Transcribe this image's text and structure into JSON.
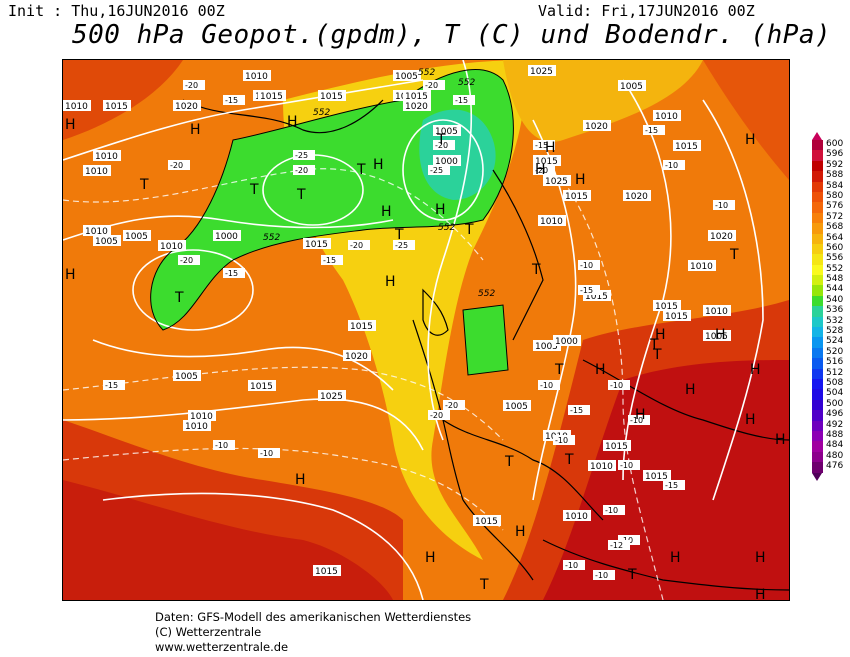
{
  "header": {
    "init": "Init : Thu,16JUN2016 00Z",
    "valid": "Valid: Fri,17JUN2016 00Z",
    "title": "500 hPa Geopot.(gpdm), T (C) und Bodendr. (hPa)"
  },
  "legend": {
    "labels": [
      "600",
      "596",
      "592",
      "588",
      "584",
      "580",
      "576",
      "572",
      "568",
      "564",
      "560",
      "556",
      "552",
      "548",
      "544",
      "540",
      "536",
      "532",
      "528",
      "524",
      "520",
      "516",
      "512",
      "508",
      "504",
      "500",
      "496",
      "492",
      "488",
      "484",
      "480",
      "476"
    ],
    "colors": [
      "#b0003a",
      "#d0103a",
      "#c00000",
      "#d21a06",
      "#e33a06",
      "#ee5208",
      "#f4680a",
      "#f7800a",
      "#f79a0c",
      "#f6b40e",
      "#f6ce10",
      "#f5e614",
      "#fafa1e",
      "#d2f010",
      "#96e60a",
      "#3cdc2e",
      "#2bd29a",
      "#1ec8c8",
      "#14b4e6",
      "#0a96f0",
      "#0a78f0",
      "#0a5af0",
      "#1038f0",
      "#1616f0",
      "#1e0ae6",
      "#3200d2",
      "#5000c8",
      "#6e00be",
      "#8c00b4",
      "#a000a0",
      "#8c008c",
      "#6e006e"
    ],
    "top_arrow_color": "#c8005a",
    "bottom_arrow_color": "#50005a"
  },
  "map": {
    "pressure_labels": [
      "1010",
      "1015",
      "1015",
      "1020",
      "1015",
      "1010",
      "1005",
      "1020",
      "1015",
      "1025",
      "1005",
      "1010",
      "1020",
      "1015",
      "1020",
      "1015",
      "1025",
      "1015",
      "1010",
      "1020",
      "1015",
      "1010",
      "1005",
      "1000",
      "1010",
      "1015",
      "1005",
      "1000",
      "1015",
      "1020",
      "1015",
      "1005",
      "1010",
      "1005",
      "1000",
      "1005",
      "1010",
      "1015",
      "1015",
      "1010",
      "1015",
      "1010",
      "1005",
      "1010",
      "1015",
      "1025",
      "1015",
      "1020",
      "1010",
      "1015",
      "1010",
      "1010",
      "1005",
      "1010",
      "1015"
    ],
    "temperature_labels": [
      "-15",
      "-20",
      "-25",
      "-20",
      "-15",
      "-20",
      "-25",
      "-15",
      "-20",
      "-25",
      "-20",
      "-15",
      "-20",
      "-15",
      "-15",
      "-10",
      "-10",
      "-10",
      "-15",
      "-20",
      "-20",
      "-15",
      "-10",
      "-10",
      "-10",
      "-10",
      "-10",
      "-20",
      "-20",
      "-10",
      "-15",
      "-10",
      "-15",
      "-10",
      "-10",
      "-10",
      "-10",
      "-12"
    ],
    "geopotential_labels": [
      "552",
      "552",
      "552",
      "552",
      "552",
      "552"
    ],
    "high_markers": [
      "H",
      "H",
      "H",
      "H",
      "H",
      "H",
      "H",
      "H",
      "H",
      "H",
      "H",
      "H",
      "H",
      "H",
      "H",
      "H",
      "H",
      "H",
      "H",
      "H",
      "H",
      "H",
      "H",
      "H",
      "H",
      "H"
    ],
    "low_markers": [
      "T",
      "T",
      "T",
      "T",
      "T",
      "T",
      "T",
      "T",
      "T",
      "T",
      "T",
      "T",
      "T",
      "T",
      "T",
      "T",
      "T"
    ]
  },
  "footer": {
    "line1": "Daten: GFS-Modell des amerikanischen Wetterdienstes",
    "line2": "(C) Wetterzentrale",
    "line3": "www.wetterzentrale.de"
  }
}
